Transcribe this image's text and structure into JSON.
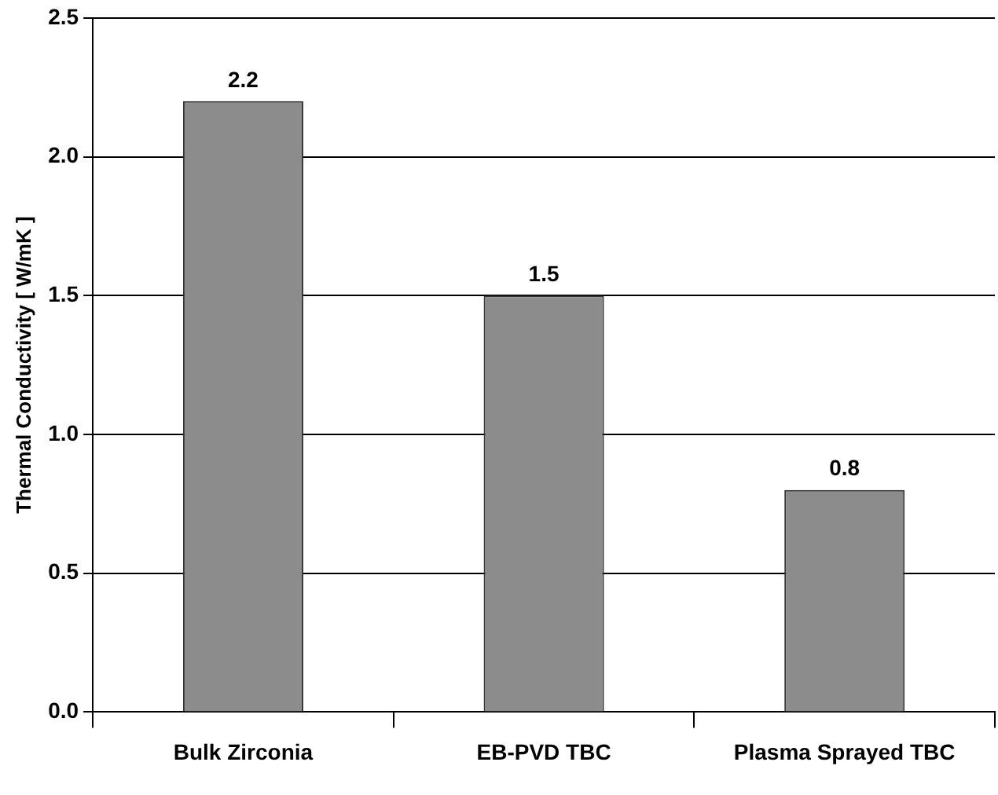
{
  "chart_data": {
    "type": "bar",
    "ylabel": "Thermal Conductivity [ W/mK ]",
    "categories": [
      "Bulk Zirconia",
      "EB-PVD TBC",
      "Plasma Sprayed TBC"
    ],
    "values": [
      2.2,
      1.5,
      0.8
    ],
    "color": "#8c8c8c",
    "ylim": [
      0,
      2.5
    ],
    "yticks": [
      {
        "value": 0,
        "label": "0.0"
      },
      {
        "value": 0.5,
        "label": "0.5"
      },
      {
        "value": 1,
        "label": "1.0"
      },
      {
        "value": 1.5,
        "label": "1.5"
      },
      {
        "value": 2,
        "label": "2.0"
      },
      {
        "value": 2.5,
        "label": "2.5"
      }
    ],
    "grid": "y",
    "data_labels": true
  }
}
